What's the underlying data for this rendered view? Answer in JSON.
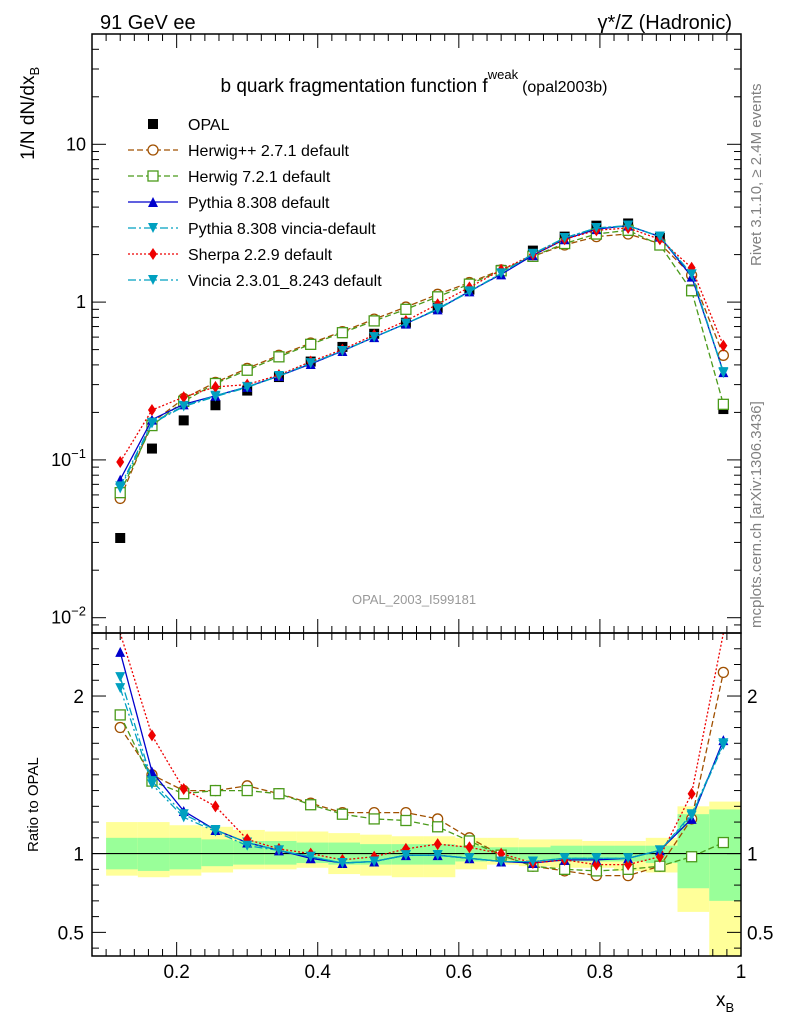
{
  "header": {
    "left": "91 GeV ee",
    "right": "γ*/Z (Hadronic)"
  },
  "side_labels": {
    "rivet": "Rivet 3.1.10, ≥ 2.4M events",
    "mcplots": "mcplots.cern.ch [arXiv:1306.3436]"
  },
  "watermark": "OPAL_2003_I599181",
  "chart_data": [
    {
      "type": "line",
      "title": "b quark fragmentation function f^weak (opal2003b)",
      "title_parts": {
        "main": "b quark fragmentation function f",
        "sup": "weak",
        "tag": "(opal2003b)"
      },
      "xlabel": "x_B",
      "ylabel": "1/N dN/dx_B",
      "yscale": "log",
      "xlim": [
        0.08,
        1.0
      ],
      "ylim": [
        0.008,
        50
      ],
      "y_ticklabels": [
        "10^-2",
        "10^-1",
        "1",
        "10"
      ],
      "x_ticklabels": [
        "0.2",
        "0.4",
        "0.6",
        "0.8",
        "1"
      ],
      "x": [
        0.12,
        0.165,
        0.21,
        0.255,
        0.3,
        0.345,
        0.39,
        0.435,
        0.48,
        0.525,
        0.57,
        0.615,
        0.66,
        0.705,
        0.75,
        0.795,
        0.84,
        0.885,
        0.93,
        0.975
      ],
      "series": [
        {
          "name": "OPAL",
          "color": "#000000",
          "marker": "square",
          "style": "none",
          "values": [
            0.032,
            0.118,
            0.178,
            0.222,
            0.275,
            0.335,
            0.42,
            0.52,
            0.63,
            0.74,
            0.92,
            1.2,
            1.6,
            2.12,
            2.6,
            3.05,
            3.15,
            2.55,
            1.2,
            0.21
          ]
        },
        {
          "name": "Herwig++ 2.7.1 default",
          "color": "#a05000",
          "marker": "circle-open",
          "style": "dashed",
          "values": [
            0.057,
            0.172,
            0.245,
            0.31,
            0.38,
            0.46,
            0.55,
            0.65,
            0.78,
            0.93,
            1.12,
            1.33,
            1.6,
            1.95,
            2.3,
            2.6,
            2.7,
            2.35,
            1.48,
            0.46
          ]
        },
        {
          "name": "Herwig 7.2.1 default",
          "color": "#4a9a1a",
          "marker": "square-open",
          "style": "dashed",
          "values": [
            0.062,
            0.165,
            0.235,
            0.305,
            0.37,
            0.45,
            0.54,
            0.64,
            0.76,
            0.9,
            1.08,
            1.3,
            1.58,
            1.95,
            2.35,
            2.7,
            2.85,
            2.3,
            1.18,
            0.225
          ]
        },
        {
          "name": "Pythia 8.308 default",
          "color": "#0000cc",
          "marker": "triangle-up",
          "style": "solid",
          "values": [
            0.075,
            0.18,
            0.225,
            0.255,
            0.29,
            0.34,
            0.405,
            0.49,
            0.6,
            0.73,
            0.9,
            1.17,
            1.5,
            1.98,
            2.5,
            2.9,
            3.05,
            2.6,
            1.45,
            0.36
          ]
        },
        {
          "name": "Pythia 8.308 vincia-default",
          "color": "#00a0c0",
          "marker": "triangle-down",
          "style": "dashdot",
          "values": [
            0.068,
            0.172,
            0.22,
            0.255,
            0.29,
            0.34,
            0.41,
            0.49,
            0.6,
            0.73,
            0.9,
            1.16,
            1.52,
            2.02,
            2.55,
            2.95,
            3.05,
            2.6,
            1.5,
            0.36
          ]
        },
        {
          "name": "Sherpa 2.2.9 default",
          "color": "#ee0000",
          "marker": "diamond",
          "style": "dotted",
          "values": [
            0.097,
            0.207,
            0.25,
            0.29,
            0.3,
            0.345,
            0.42,
            0.5,
            0.62,
            0.76,
            0.97,
            1.24,
            1.6,
            2.0,
            2.5,
            2.85,
            2.95,
            2.5,
            1.65,
            0.53
          ]
        },
        {
          "name": "Vincia 2.3.01_8.243 default",
          "color": "#00a0c0",
          "marker": "triangle-down",
          "style": "dashdot",
          "values": [
            0.066,
            0.17,
            0.218,
            0.252,
            0.288,
            0.34,
            0.41,
            0.49,
            0.6,
            0.73,
            0.91,
            1.17,
            1.52,
            2.02,
            2.55,
            2.95,
            3.05,
            2.6,
            1.5,
            0.355
          ]
        }
      ]
    },
    {
      "type": "line",
      "ylabel": "Ratio to OPAL",
      "xlabel": "x_B",
      "xlim": [
        0.08,
        1.0
      ],
      "ylim": [
        0.35,
        2.4
      ],
      "y_ticklabels": [
        "0.5",
        "1",
        "2"
      ],
      "x": [
        0.12,
        0.165,
        0.21,
        0.255,
        0.3,
        0.345,
        0.39,
        0.435,
        0.48,
        0.525,
        0.57,
        0.615,
        0.66,
        0.705,
        0.75,
        0.795,
        0.84,
        0.885,
        0.93,
        0.975
      ],
      "bands": {
        "stat_color": "#99ff99",
        "total_color": "#ffff99",
        "edges": [
          0.1,
          0.145,
          0.19,
          0.235,
          0.28,
          0.325,
          0.37,
          0.415,
          0.46,
          0.505,
          0.55,
          0.595,
          0.64,
          0.685,
          0.73,
          0.775,
          0.82,
          0.865,
          0.91,
          0.955,
          1.0
        ],
        "stat_lo": [
          0.9,
          0.89,
          0.9,
          0.92,
          0.93,
          0.93,
          0.94,
          0.93,
          0.93,
          0.93,
          0.93,
          0.95,
          0.96,
          0.96,
          0.95,
          0.95,
          0.95,
          0.94,
          0.78,
          0.7
        ],
        "stat_hi": [
          1.1,
          1.1,
          1.1,
          1.09,
          1.08,
          1.08,
          1.07,
          1.07,
          1.06,
          1.06,
          1.06,
          1.05,
          1.04,
          1.04,
          1.05,
          1.05,
          1.05,
          1.05,
          1.25,
          1.28
        ],
        "total_lo": [
          0.86,
          0.85,
          0.86,
          0.88,
          0.9,
          0.9,
          0.91,
          0.87,
          0.86,
          0.85,
          0.85,
          0.9,
          0.93,
          0.92,
          0.91,
          0.91,
          0.89,
          0.88,
          0.63,
          0.35
        ],
        "total_hi": [
          1.2,
          1.2,
          1.18,
          1.17,
          1.15,
          1.14,
          1.14,
          1.13,
          1.12,
          1.11,
          1.11,
          1.1,
          1.1,
          1.09,
          1.09,
          1.08,
          1.08,
          1.1,
          1.3,
          1.33
        ]
      },
      "series": [
        {
          "name": "Herwig++ 2.7.1 default",
          "values": [
            1.8,
            1.5,
            1.4,
            1.4,
            1.43,
            1.38,
            1.32,
            1.26,
            1.26,
            1.26,
            1.22,
            1.1,
            0.99,
            0.92,
            0.89,
            0.86,
            0.86,
            0.92,
            1.22,
            2.15
          ]
        },
        {
          "name": "Herwig 7.2.1 default",
          "values": [
            1.88,
            1.46,
            1.38,
            1.4,
            1.4,
            1.38,
            1.31,
            1.25,
            1.22,
            1.21,
            1.17,
            1.08,
            0.99,
            0.92,
            0.9,
            0.89,
            0.9,
            0.92,
            0.98,
            1.07
          ]
        },
        {
          "name": "Pythia 8.308 default",
          "values": [
            2.28,
            1.52,
            1.27,
            1.15,
            1.07,
            1.02,
            0.97,
            0.94,
            0.95,
            0.99,
            0.99,
            0.97,
            0.95,
            0.94,
            0.96,
            0.96,
            0.97,
            1.02,
            1.22,
            1.72
          ]
        },
        {
          "name": "Pythia 8.308 vincia-default",
          "values": [
            2.12,
            1.46,
            1.25,
            1.15,
            1.07,
            1.02,
            0.98,
            0.94,
            0.95,
            0.99,
            0.99,
            0.97,
            0.95,
            0.95,
            0.97,
            0.97,
            0.97,
            1.02,
            1.25,
            1.7
          ]
        },
        {
          "name": "Sherpa 2.2.9 default",
          "values": [
            3.0,
            1.75,
            1.41,
            1.3,
            1.09,
            1.03,
            1.0,
            0.96,
            0.98,
            1.03,
            1.06,
            1.04,
            1.0,
            0.94,
            0.96,
            0.93,
            0.93,
            0.98,
            1.38,
            2.5
          ]
        },
        {
          "name": "Vincia 2.3.01_8.243 default",
          "values": [
            2.05,
            1.44,
            1.23,
            1.14,
            1.05,
            1.02,
            0.98,
            0.94,
            0.95,
            0.99,
            0.99,
            0.97,
            0.95,
            0.95,
            0.97,
            0.97,
            0.97,
            1.02,
            1.24,
            1.69
          ]
        }
      ]
    }
  ]
}
